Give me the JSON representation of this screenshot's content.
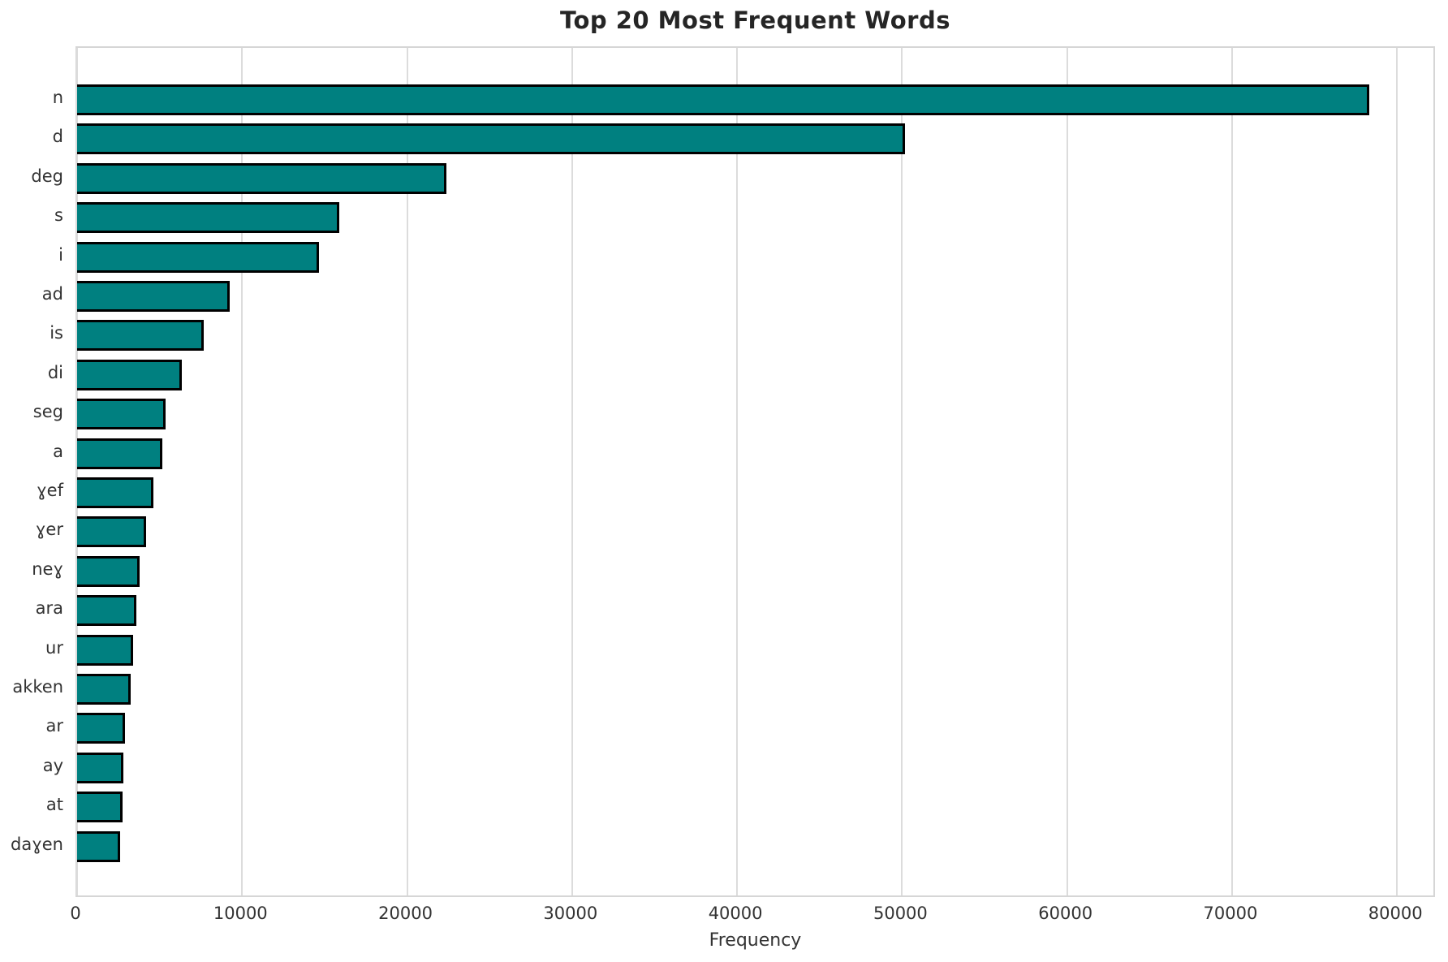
{
  "chart_data": {
    "type": "bar",
    "orientation": "horizontal",
    "title": "Top 20 Most Frequent Words",
    "xlabel": "Frequency",
    "ylabel": "",
    "categories": [
      "n",
      "d",
      "deg",
      "s",
      "i",
      "ad",
      "is",
      "di",
      "seg",
      "a",
      "ɣef",
      "ɣer",
      "neɣ",
      "ara",
      "ur",
      "akken",
      "ar",
      "ay",
      "at",
      "daɣen"
    ],
    "values": [
      78300,
      50200,
      22400,
      15900,
      14650,
      9250,
      7650,
      6350,
      5340,
      5150,
      4600,
      4170,
      3780,
      3580,
      3380,
      3240,
      2890,
      2790,
      2740,
      2600
    ],
    "xticks": [
      0,
      10000,
      20000,
      30000,
      40000,
      50000,
      60000,
      70000,
      80000
    ],
    "xlim": [
      0,
      82400
    ],
    "grid": true,
    "legend_position": "none",
    "bar_color": "#008080",
    "bar_edge_color": "#000000",
    "grid_color": "#dcdcdc",
    "background_color": "#ffffff",
    "title_color": "#252525",
    "tick_color": "#333333"
  }
}
